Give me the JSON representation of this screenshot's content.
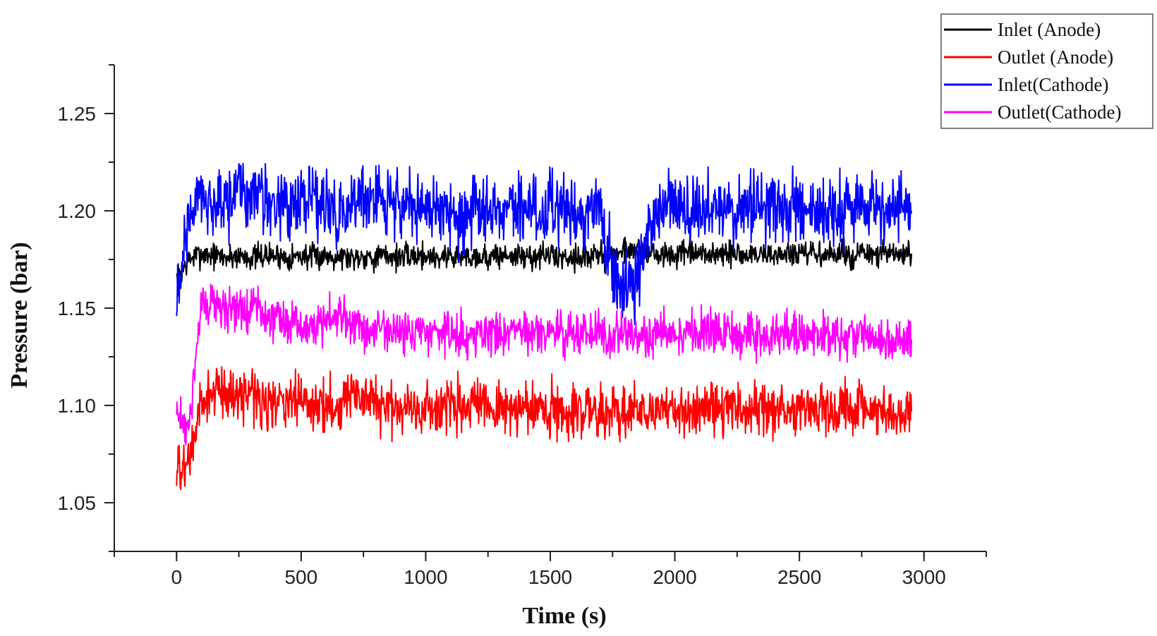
{
  "chart_data": {
    "type": "line",
    "title": "",
    "xlabel": "Time (s)",
    "ylabel": "Pressure (bar)",
    "xlim": [
      -250,
      3250
    ],
    "ylim": [
      1.025,
      1.275
    ],
    "xticks": [
      0,
      500,
      1000,
      1500,
      2000,
      2500,
      3000
    ],
    "xtick_labels": [
      "0",
      "500",
      "1000",
      "1500",
      "2000",
      "2500",
      "3000"
    ],
    "yticks": [
      1.05,
      1.1,
      1.15,
      1.2,
      1.25
    ],
    "ytick_labels": [
      "1.05",
      "1.10",
      "1.15",
      "1.20",
      "1.25"
    ],
    "grid": false,
    "legend_position": "top-right",
    "series": [
      {
        "name": "Inlet (Anode)",
        "color": "#000000",
        "x": [
          0,
          50,
          100,
          150,
          200,
          250,
          300,
          350,
          400,
          450,
          500,
          550,
          600,
          650,
          700,
          750,
          800,
          850,
          900,
          950,
          1000,
          1050,
          1100,
          1150,
          1200,
          1250,
          1300,
          1350,
          1400,
          1450,
          1500,
          1550,
          1600,
          1650,
          1700,
          1750,
          1800,
          1850,
          1900,
          1950,
          2000,
          2050,
          2100,
          2150,
          2200,
          2250,
          2300,
          2350,
          2400,
          2450,
          2500,
          2550,
          2600,
          2650,
          2700,
          2750,
          2800,
          2850,
          2900,
          2950
        ],
        "y": [
          1.165,
          1.175,
          1.178,
          1.177,
          1.176,
          1.177,
          1.176,
          1.177,
          1.177,
          1.176,
          1.177,
          1.176,
          1.177,
          1.177,
          1.176,
          1.177,
          1.176,
          1.177,
          1.176,
          1.177,
          1.177,
          1.176,
          1.177,
          1.176,
          1.177,
          1.176,
          1.177,
          1.177,
          1.176,
          1.177,
          1.177,
          1.176,
          1.177,
          1.176,
          1.177,
          1.177,
          1.18,
          1.181,
          1.178,
          1.177,
          1.177,
          1.178,
          1.177,
          1.178,
          1.177,
          1.178,
          1.177,
          1.178,
          1.177,
          1.178,
          1.177,
          1.178,
          1.177,
          1.178,
          1.177,
          1.178,
          1.177,
          1.178,
          1.177,
          1.178
        ]
      },
      {
        "name": "Outlet (Anode)",
        "color": "#ff0000",
        "x": [
          0,
          50,
          100,
          150,
          200,
          250,
          300,
          350,
          400,
          450,
          500,
          550,
          600,
          650,
          700,
          750,
          800,
          850,
          900,
          950,
          1000,
          1050,
          1100,
          1150,
          1200,
          1250,
          1300,
          1350,
          1400,
          1450,
          1500,
          1550,
          1600,
          1650,
          1700,
          1750,
          1800,
          1850,
          1900,
          1950,
          2000,
          2050,
          2100,
          2150,
          2200,
          2250,
          2300,
          2350,
          2400,
          2450,
          2500,
          2550,
          2600,
          2650,
          2700,
          2750,
          2800,
          2850,
          2900,
          2950
        ],
        "y": [
          1.065,
          1.07,
          1.1,
          1.108,
          1.106,
          1.105,
          1.108,
          1.102,
          1.1,
          1.101,
          1.104,
          1.1,
          1.099,
          1.101,
          1.106,
          1.102,
          1.1,
          1.099,
          1.1,
          1.099,
          1.098,
          1.1,
          1.099,
          1.098,
          1.099,
          1.098,
          1.099,
          1.098,
          1.098,
          1.099,
          1.098,
          1.098,
          1.099,
          1.098,
          1.098,
          1.097,
          1.097,
          1.098,
          1.098,
          1.098,
          1.098,
          1.098,
          1.099,
          1.098,
          1.098,
          1.098,
          1.098,
          1.098,
          1.098,
          1.099,
          1.098,
          1.098,
          1.098,
          1.098,
          1.098,
          1.098,
          1.098,
          1.097,
          1.098,
          1.097
        ]
      },
      {
        "name": "Inlet(Cathode)",
        "color": "#0000ff",
        "x": [
          0,
          50,
          100,
          150,
          200,
          250,
          300,
          350,
          400,
          450,
          500,
          550,
          600,
          650,
          700,
          750,
          800,
          850,
          900,
          950,
          1000,
          1050,
          1100,
          1150,
          1200,
          1250,
          1300,
          1350,
          1400,
          1450,
          1500,
          1550,
          1600,
          1650,
          1700,
          1750,
          1800,
          1850,
          1900,
          1950,
          2000,
          2050,
          2100,
          2150,
          2200,
          2250,
          2300,
          2350,
          2400,
          2450,
          2500,
          2550,
          2600,
          2650,
          2700,
          2750,
          2800,
          2850,
          2900,
          2950
        ],
        "y": [
          1.15,
          1.2,
          1.205,
          1.205,
          1.204,
          1.207,
          1.21,
          1.208,
          1.201,
          1.205,
          1.207,
          1.204,
          1.2,
          1.199,
          1.202,
          1.206,
          1.203,
          1.205,
          1.204,
          1.202,
          1.203,
          1.199,
          1.2,
          1.193,
          1.199,
          1.201,
          1.201,
          1.2,
          1.202,
          1.201,
          1.201,
          1.202,
          1.2,
          1.201,
          1.2,
          1.17,
          1.16,
          1.165,
          1.195,
          1.2,
          1.201,
          1.202,
          1.2,
          1.201,
          1.2,
          1.201,
          1.2,
          1.201,
          1.2,
          1.201,
          1.2,
          1.2,
          1.201,
          1.2,
          1.2,
          1.201,
          1.2,
          1.2,
          1.199,
          1.2
        ]
      },
      {
        "name": "Outlet(Cathode)",
        "color": "#ff00ff",
        "x": [
          0,
          50,
          100,
          150,
          200,
          250,
          300,
          350,
          400,
          450,
          500,
          550,
          600,
          650,
          700,
          750,
          800,
          850,
          900,
          950,
          1000,
          1050,
          1100,
          1150,
          1200,
          1250,
          1300,
          1350,
          1400,
          1450,
          1500,
          1550,
          1600,
          1650,
          1700,
          1750,
          1800,
          1850,
          1900,
          1950,
          2000,
          2050,
          2100,
          2150,
          2200,
          2250,
          2300,
          2350,
          2400,
          2450,
          2500,
          2550,
          2600,
          2650,
          2700,
          2750,
          2800,
          2850,
          2900,
          2950
        ],
        "y": [
          1.095,
          1.09,
          1.15,
          1.152,
          1.15,
          1.15,
          1.15,
          1.148,
          1.145,
          1.142,
          1.14,
          1.14,
          1.145,
          1.148,
          1.142,
          1.14,
          1.139,
          1.138,
          1.138,
          1.137,
          1.137,
          1.137,
          1.137,
          1.136,
          1.137,
          1.137,
          1.136,
          1.137,
          1.137,
          1.136,
          1.137,
          1.137,
          1.136,
          1.137,
          1.137,
          1.136,
          1.137,
          1.137,
          1.136,
          1.137,
          1.137,
          1.136,
          1.137,
          1.136,
          1.137,
          1.136,
          1.137,
          1.136,
          1.137,
          1.137,
          1.136,
          1.136,
          1.135,
          1.135,
          1.136,
          1.135,
          1.135,
          1.134,
          1.134,
          1.134
        ]
      }
    ]
  }
}
